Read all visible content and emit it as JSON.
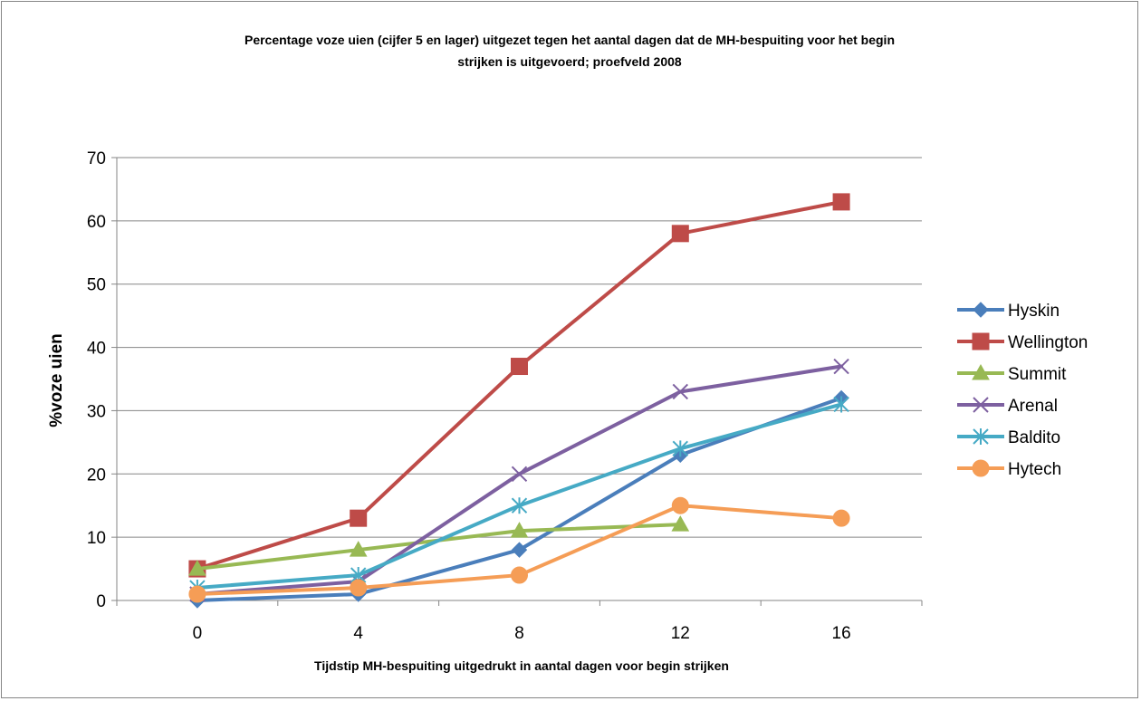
{
  "chart_data": {
    "type": "line",
    "title_line1": "Percentage voze uien (cijfer 5 en lager) uitgezet tegen het aantal dagen dat de MH-bespuiting voor het begin",
    "title_line2": "strijken is uitgevoerd; proefveld 2008",
    "xlabel": "Tijdstip MH-bespuiting uitgedrukt in aantal dagen voor begin strijken",
    "ylabel": "%voze uien",
    "categories": [
      "0",
      "4",
      "8",
      "12",
      "16"
    ],
    "y_ticks": [
      "0",
      "10",
      "20",
      "30",
      "40",
      "50",
      "60",
      "70"
    ],
    "ylim": [
      0,
      70
    ],
    "grid": "horizontal",
    "legend_position": "right",
    "series": [
      {
        "name": "Hyskin",
        "color": "#4A7EBB",
        "marker": "diamond",
        "values": [
          0,
          1,
          8,
          23,
          32
        ]
      },
      {
        "name": "Wellington",
        "color": "#BE4B48",
        "marker": "square",
        "values": [
          5,
          13,
          37,
          58,
          63
        ]
      },
      {
        "name": "Summit",
        "color": "#98B954",
        "marker": "triangle",
        "values": [
          5,
          8,
          11,
          12,
          null
        ]
      },
      {
        "name": "Arenal",
        "color": "#7D60A0",
        "marker": "x",
        "values": [
          1,
          3,
          20,
          33,
          37
        ]
      },
      {
        "name": "Baldito",
        "color": "#46AAC5",
        "marker": "star",
        "values": [
          2,
          4,
          15,
          24,
          31
        ]
      },
      {
        "name": "Hytech",
        "color": "#F59D56",
        "marker": "circle",
        "values": [
          1,
          2,
          4,
          15,
          13
        ]
      }
    ]
  }
}
